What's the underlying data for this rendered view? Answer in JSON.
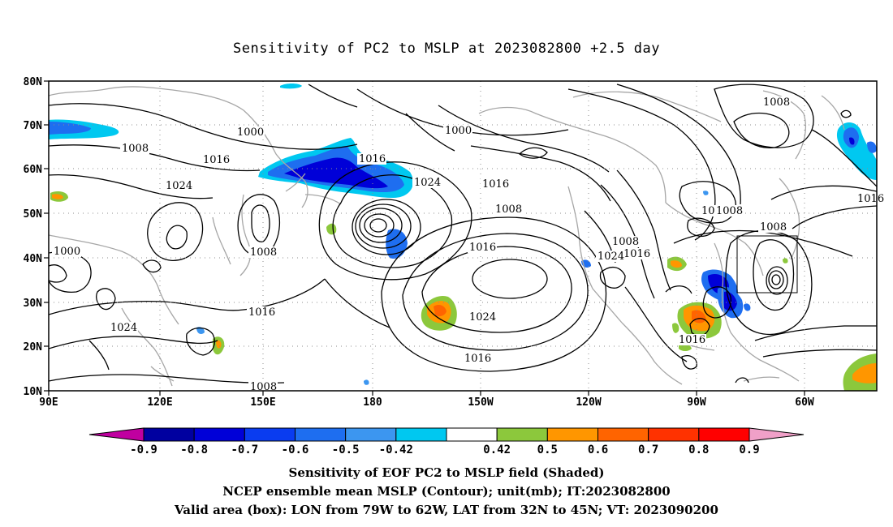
{
  "title": "Sensitivity of PC2 to MSLP at 2023082800 +2.5 day",
  "map": {
    "lat_ticks": [
      "80N",
      "70N",
      "60N",
      "50N",
      "40N",
      "30N",
      "20N",
      "10N"
    ],
    "lon_ticks": [
      "90E",
      "120E",
      "150E",
      "180",
      "150W",
      "120W",
      "90W",
      "60W"
    ],
    "valid_box": {
      "lon_from": -79,
      "lon_to": -62,
      "lat_from": 32,
      "lat_to": 45
    },
    "contour_labels": [
      "1000",
      "1008",
      "1016",
      "1024",
      "1000",
      "1008",
      "1016",
      "1024",
      "1008",
      "1016",
      "1024",
      "1016",
      "1008",
      "1016",
      "1024",
      "1016",
      "1000",
      "1008",
      "1016",
      "1024",
      "1016",
      "1008",
      "1016",
      "1008",
      "1016",
      "1008",
      "1000",
      "1016",
      "1008",
      "1008",
      "10",
      "1016",
      "101",
      "1008"
    ],
    "colors": {
      "contour": "#000000",
      "coast": "#a6a6a6",
      "grid": "#8c8c8c"
    }
  },
  "colorbar": {
    "labels": [
      "-0.9",
      "-0.8",
      "-0.7",
      "-0.6",
      "-0.5",
      "-0.42",
      "0.42",
      "0.5",
      "0.6",
      "0.7",
      "0.8",
      "0.9"
    ],
    "colors": [
      "#c000a0",
      "#0000a0",
      "#0000d8",
      "#0a3cf0",
      "#1e6ef0",
      "#3c96f0",
      "#00c8f0",
      "#ffffff",
      "#8cc83c",
      "#ff9600",
      "#ff6400",
      "#ff3200",
      "#ff0000",
      "#f0a0c8"
    ]
  },
  "captions": {
    "line1": "Sensitivity of EOF PC2 to MSLP field (Shaded)",
    "line2": "NCEP ensemble mean MSLP (Contour); unit(mb); IT:2023082800",
    "line3": "Valid area (box): LON from 79W to 62W, LAT from 32N to 45N; VT: 2023090200"
  }
}
